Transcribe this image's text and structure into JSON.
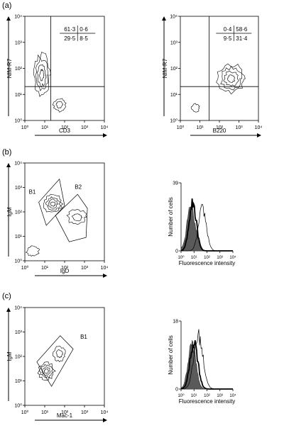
{
  "panels": {
    "a": "(a)",
    "b": "(b)",
    "c": "(c)"
  },
  "chart_data": [
    {
      "id": "a-left",
      "type": "scatter",
      "subtype": "contour",
      "xlabel": "CD3",
      "ylabel": "NIM-R7",
      "scale": "log",
      "xlim": [
        1,
        10000
      ],
      "ylim": [
        1,
        10000
      ],
      "xticks": [
        "10⁰",
        "10¹",
        "10²",
        "10³",
        "10⁴"
      ],
      "yticks": [
        "10⁰",
        "10¹",
        "10²",
        "10³",
        "10⁴"
      ],
      "quadrant_x": 20,
      "quadrant_y": 20,
      "quadrants": {
        "upper_left": "61·3",
        "upper_right": "0·6",
        "lower_left": "29·5",
        "lower_right": "8·5"
      },
      "populations": [
        {
          "center": [
            7,
            55
          ],
          "spread": [
            0.4,
            0.8
          ],
          "rings": 4
        },
        {
          "center": [
            55,
            4
          ],
          "spread": [
            0.3,
            0.25
          ],
          "rings": 2
        }
      ]
    },
    {
      "id": "a-right",
      "type": "scatter",
      "subtype": "contour",
      "xlabel": "B220",
      "ylabel": "NIM-R7",
      "scale": "log",
      "xlim": [
        1,
        10000
      ],
      "ylim": [
        1,
        10000
      ],
      "xticks": [
        "10⁰",
        "10¹",
        "10²",
        "10³",
        "10⁴"
      ],
      "yticks": [
        "10⁰",
        "10¹",
        "10²",
        "10³",
        "10⁴"
      ],
      "quadrant_x": 30,
      "quadrant_y": 20,
      "quadrants": {
        "upper_left": "0·4",
        "upper_right": "58·6",
        "lower_left": "9·5",
        "lower_right": "31·4"
      },
      "populations": [
        {
          "center": [
            400,
            40
          ],
          "spread": [
            0.7,
            0.55
          ],
          "rings": 4
        },
        {
          "center": [
            6,
            3
          ],
          "spread": [
            0.2,
            0.15
          ],
          "rings": 1
        }
      ]
    },
    {
      "id": "b-left",
      "type": "scatter",
      "subtype": "contour",
      "xlabel": "IgD",
      "ylabel": "IgM",
      "scale": "log",
      "xlim": [
        1,
        10000
      ],
      "ylim": [
        1,
        10000
      ],
      "xticks": [
        "10⁰",
        "10¹",
        "10²",
        "10³",
        "10⁴"
      ],
      "yticks": [
        "10⁰",
        "10¹",
        "10²",
        "10³",
        "10⁴"
      ],
      "gates": [
        {
          "label": "B1",
          "points": [
            [
              5,
              250
            ],
            [
              55,
              2200
            ],
            [
              100,
              180
            ],
            [
              12,
              28
            ]
          ]
        },
        {
          "label": "B2",
          "points": [
            [
              35,
              70
            ],
            [
              450,
              520
            ],
            [
              1400,
              140
            ],
            [
              1200,
              9
            ],
            [
              170,
              6
            ]
          ]
        }
      ],
      "populations": [
        {
          "center": [
            26,
            210
          ],
          "spread": [
            0.45,
            0.35
          ],
          "rings": 4
        },
        {
          "center": [
            420,
            60
          ],
          "spread": [
            0.45,
            0.3
          ],
          "rings": 2
        },
        {
          "center": [
            2.5,
            2.5
          ],
          "spread": [
            0.3,
            0.2
          ],
          "rings": 1
        }
      ]
    },
    {
      "id": "b-right",
      "type": "area",
      "xlabel": "Fluorescence intensity",
      "ylabel": "Number of cells",
      "scale_x": "log",
      "xlim": [
        1,
        10000
      ],
      "ylim": [
        0,
        39
      ],
      "xticks": [
        "10⁰",
        "10¹",
        "10²",
        "10³",
        "10⁴"
      ],
      "yticks": [
        "0",
        "39"
      ],
      "series": [
        {
          "style": "filled",
          "center": 6,
          "spread": 0.32,
          "peak": 25
        },
        {
          "style": "thick",
          "center": 8,
          "spread": 0.28,
          "peak": 27
        },
        {
          "style": "thin",
          "center": 45,
          "spread": 0.3,
          "peak": 24
        }
      ]
    },
    {
      "id": "c-left",
      "type": "scatter",
      "subtype": "contour",
      "xlabel": "Mac-1",
      "ylabel": "IgM",
      "scale": "log",
      "xlim": [
        1,
        10000
      ],
      "ylim": [
        1,
        10000
      ],
      "xticks": [
        "10⁰",
        "10¹",
        "10²",
        "10³",
        "10⁴"
      ],
      "yticks": [
        "10⁰",
        "10¹",
        "10²",
        "10³",
        "10⁴"
      ],
      "gates": [
        {
          "label": "B1",
          "points": [
            [
              4,
              60
            ],
            [
              60,
              700
            ],
            [
              270,
              200
            ],
            [
              22,
              6
            ]
          ]
        }
      ],
      "populations": [
        {
          "center": [
            12,
            25
          ],
          "spread": [
            0.4,
            0.35
          ],
          "rings": 4
        },
        {
          "center": [
            55,
            130
          ],
          "spread": [
            0.3,
            0.3
          ],
          "rings": 2
        }
      ]
    },
    {
      "id": "c-right",
      "type": "area",
      "xlabel": "Fluorescence intensity",
      "ylabel": "Number of cells",
      "scale_x": "log",
      "xlim": [
        1,
        10000
      ],
      "ylim": [
        0,
        18
      ],
      "xticks": [
        "10⁰",
        "10¹",
        "10²",
        "10³",
        "10⁴"
      ],
      "yticks": [
        "0",
        "18"
      ],
      "series": [
        {
          "style": "filled",
          "center": 7,
          "spread": 0.3,
          "peak": 12
        },
        {
          "style": "thick",
          "center": 10,
          "spread": 0.3,
          "peak": 12.5
        },
        {
          "style": "thin",
          "center": 22,
          "spread": 0.35,
          "peak": 14
        }
      ]
    }
  ]
}
